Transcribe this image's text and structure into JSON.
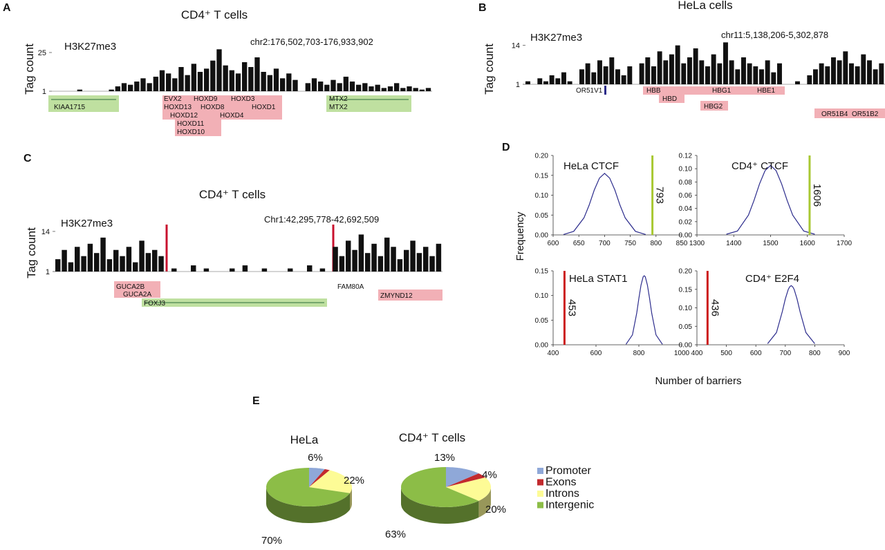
{
  "panels": [
    "A",
    "B",
    "C",
    "D",
    "E"
  ],
  "panel_d": {
    "ylabel": "Frequency",
    "xlabel": "Number of barriers"
  },
  "chart_data": [
    {
      "type": "genome-track",
      "title": "CD4⁺ T cells",
      "mark": "H3K27me3",
      "region": "chr2:176,502,703-176,933,902",
      "ylabel": "Tag count",
      "ylim": [
        1,
        28
      ],
      "yticks": [
        1,
        25
      ],
      "color": "#111111",
      "values": [
        1,
        1,
        1,
        1,
        2,
        1,
        1,
        1,
        1,
        2,
        4,
        6,
        5,
        7,
        9,
        6,
        10,
        14,
        12,
        9,
        16,
        11,
        18,
        13,
        15,
        20,
        27,
        17,
        14,
        12,
        19,
        16,
        22,
        13,
        11,
        15,
        9,
        12,
        8,
        1,
        6,
        9,
        7,
        5,
        8,
        6,
        10,
        7,
        5,
        6,
        4,
        5,
        3,
        4,
        6,
        3,
        4,
        3,
        2,
        3
      ],
      "genes": [
        "KIAA1715",
        "EVX2",
        "HOXD9",
        "HOXD3",
        "HOXD13",
        "HOXD8",
        "HOXD1",
        "HOXD12",
        "HOXD4",
        "HOXD11",
        "HOXD10",
        "MTX2",
        "MTX2"
      ]
    },
    {
      "type": "genome-track",
      "title": "HeLa cells",
      "mark": "H3K27me3",
      "region": "chr11:5,138,206-5,302,878",
      "ylabel": "Tag count",
      "ylim": [
        1,
        16
      ],
      "yticks": [
        1,
        14
      ],
      "color": "#111111",
      "values": [
        2,
        1,
        3,
        2,
        4,
        3,
        5,
        2,
        1,
        6,
        8,
        5,
        9,
        7,
        10,
        6,
        4,
        7,
        1,
        8,
        10,
        7,
        12,
        9,
        11,
        14,
        8,
        10,
        13,
        9,
        7,
        11,
        8,
        15,
        9,
        6,
        10,
        8,
        7,
        6,
        9,
        5,
        8,
        1,
        1,
        2,
        1,
        4,
        6,
        8,
        7,
        10,
        9,
        12,
        8,
        7,
        11,
        9,
        6,
        8
      ],
      "genes": [
        "OR51V1",
        "HBB",
        "HBG1",
        "HBE1",
        "HBD",
        "HBG2",
        "OR51B4",
        "OR51B2"
      ]
    },
    {
      "type": "genome-track",
      "title": "CD4⁺ T cells",
      "mark": "H3K27me3",
      "region": "Chr1:42,295,778-42,692,509",
      "ylabel": "Tag count",
      "ylim": [
        1,
        16
      ],
      "yticks": [
        1,
        14
      ],
      "color": "#111111",
      "values": [
        5,
        8,
        4,
        9,
        6,
        10,
        7,
        12,
        5,
        8,
        6,
        9,
        4,
        11,
        7,
        8,
        6,
        1,
        2,
        1,
        1,
        3,
        1,
        2,
        1,
        1,
        1,
        2,
        1,
        3,
        1,
        1,
        2,
        1,
        1,
        1,
        2,
        1,
        1,
        3,
        1,
        2,
        1,
        9,
        6,
        11,
        8,
        13,
        7,
        10,
        6,
        12,
        9,
        5,
        8,
        11,
        7,
        9,
        6,
        10
      ],
      "genes": [
        "GUCA2B",
        "GUCA2A",
        "FOXJ3",
        "FAM80A",
        "ZMYND12"
      ]
    },
    {
      "type": "line",
      "title": "HeLa CTCF",
      "xlim": [
        600,
        850
      ],
      "xticks": [
        600,
        650,
        700,
        750,
        800,
        850
      ],
      "ylim": [
        0,
        0.2
      ],
      "yticks": [
        {
          "value": 0,
          "label": "0.00"
        },
        {
          "value": 0.05,
          "label": "0.05"
        },
        {
          "value": 0.1,
          "label": "0.10"
        },
        {
          "value": 0.15,
          "label": "0.15"
        },
        {
          "value": 0.2,
          "label": "0.20"
        }
      ],
      "x": [
        620,
        640,
        660,
        670,
        680,
        690,
        700,
        710,
        720,
        730,
        740,
        760,
        780
      ],
      "y": [
        0.001,
        0.009,
        0.043,
        0.075,
        0.113,
        0.143,
        0.155,
        0.143,
        0.113,
        0.075,
        0.043,
        0.009,
        0.001
      ],
      "color": "#2b2b8c",
      "marker": 793,
      "marker_color": "#a8c832"
    },
    {
      "type": "line",
      "title": "CD4⁺ CTCF",
      "xlim": [
        1300,
        1700
      ],
      "xticks": [
        1300,
        1400,
        1500,
        1600,
        1700
      ],
      "ylim": [
        0,
        0.12
      ],
      "yticks": [
        {
          "value": 0,
          "label": "0.00"
        },
        {
          "value": 0.02,
          "label": "0.02"
        },
        {
          "value": 0.04,
          "label": "0.04"
        },
        {
          "value": 0.06,
          "label": "0.06"
        },
        {
          "value": 0.08,
          "label": "0.08"
        },
        {
          "value": 0.1,
          "label": "0.10"
        },
        {
          "value": 0.12,
          "label": "0.12"
        }
      ],
      "x": [
        1380,
        1410,
        1440,
        1455,
        1470,
        1485,
        1500,
        1515,
        1530,
        1545,
        1560,
        1590,
        1620
      ],
      "y": [
        0.001,
        0.006,
        0.03,
        0.052,
        0.077,
        0.097,
        0.105,
        0.097,
        0.077,
        0.052,
        0.03,
        0.006,
        0.001
      ],
      "color": "#2b2b8c",
      "marker": 1606,
      "marker_color": "#a8c832"
    },
    {
      "type": "line",
      "title": "HeLa STAT1",
      "xlim": [
        400,
        1000
      ],
      "xticks": [
        400,
        600,
        800,
        1000
      ],
      "ylim": [
        0,
        0.15
      ],
      "yticks": [
        {
          "value": 0,
          "label": "0.00"
        },
        {
          "value": 0.05,
          "label": "0.05"
        },
        {
          "value": 0.1,
          "label": "0.10"
        },
        {
          "value": 0.15,
          "label": "0.15"
        }
      ],
      "x": [
        740,
        770,
        790,
        800,
        810,
        820,
        825,
        830,
        840,
        850,
        860,
        880,
        910
      ],
      "y": [
        0.001,
        0.02,
        0.064,
        0.094,
        0.121,
        0.138,
        0.14,
        0.138,
        0.121,
        0.094,
        0.064,
        0.02,
        0.001
      ],
      "color": "#2b2b8c",
      "marker": 453,
      "marker_color": "#cc1a1a"
    },
    {
      "type": "line",
      "title": "CD4⁺ E2F4",
      "xlim": [
        400,
        900
      ],
      "xticks": [
        400,
        500,
        600,
        700,
        800,
        900
      ],
      "ylim": [
        0,
        0.2
      ],
      "yticks": [
        {
          "value": 0,
          "label": "0.00"
        },
        {
          "value": 0.05,
          "label": "0.05"
        },
        {
          "value": 0.1,
          "label": "0.10"
        },
        {
          "value": 0.15,
          "label": "0.15"
        },
        {
          "value": 0.2,
          "label": "0.20"
        }
      ],
      "x": [
        640,
        670,
        690,
        700,
        710,
        715,
        720,
        725,
        730,
        740,
        750,
        770,
        800
      ],
      "y": [
        0.003,
        0.033,
        0.09,
        0.124,
        0.15,
        0.157,
        0.16,
        0.157,
        0.15,
        0.124,
        0.09,
        0.033,
        0.003
      ],
      "color": "#2b2b8c",
      "marker": 436,
      "marker_color": "#cc1a1a"
    },
    {
      "type": "pie",
      "title": "HeLa",
      "categories": [
        "Promoter",
        "Exons",
        "Introns",
        "Intergenic"
      ],
      "colors": [
        "#8fa8d8",
        "#c22a2e",
        "#fdfb96",
        "#8cbd47"
      ],
      "values": [
        6,
        2,
        22,
        70
      ],
      "value_labels": [
        "6%",
        null,
        "22%",
        "70%"
      ]
    },
    {
      "type": "pie",
      "title": "CD4⁺ T cells",
      "values": [
        13,
        4,
        20,
        63
      ],
      "value_labels": [
        "13%",
        "4%",
        "20%",
        "63%"
      ]
    }
  ]
}
